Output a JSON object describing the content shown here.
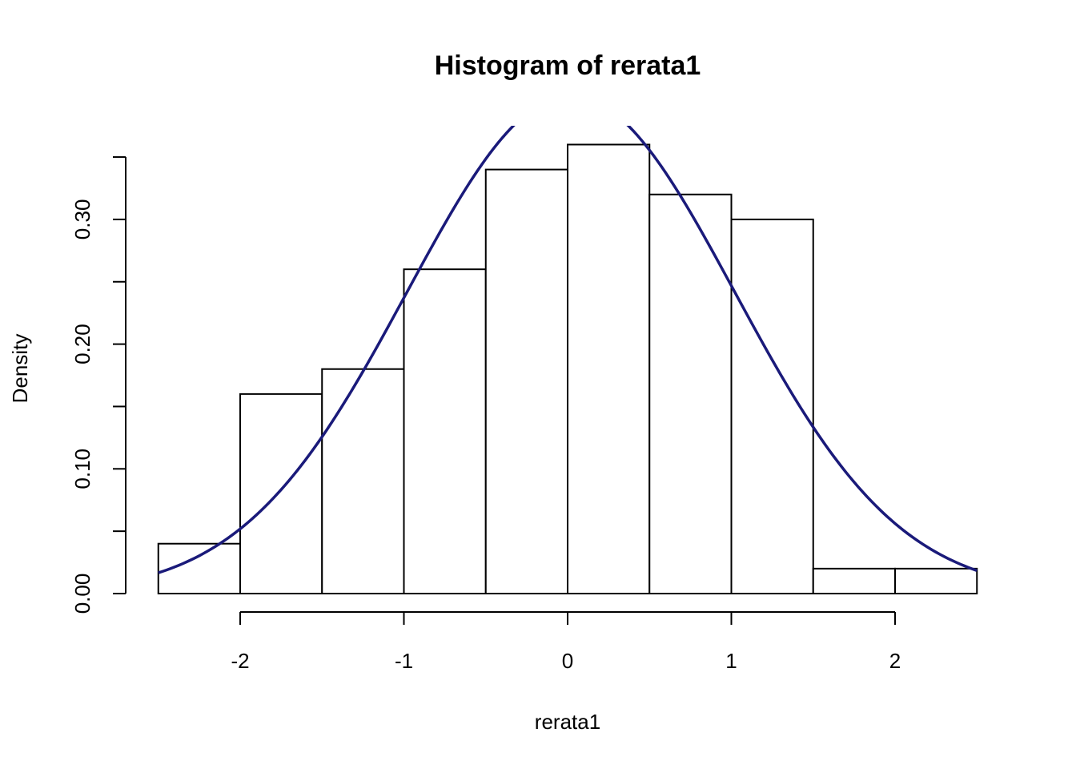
{
  "chart_data": {
    "type": "bar",
    "title": "Histogram of rerata1",
    "xlabel": "rerata1",
    "ylabel": "Density",
    "xlim": [
      -2.5,
      2.5
    ],
    "ylim": [
      0,
      0.35
    ],
    "x_ticks": [
      -2,
      -1,
      0,
      1,
      2
    ],
    "x_tick_labels": [
      "-2",
      "-1",
      "0",
      "1",
      "2"
    ],
    "y_ticks": [
      0.0,
      0.05,
      0.1,
      0.15,
      0.2,
      0.25,
      0.3,
      0.35
    ],
    "y_tick_labels": [
      "0.00",
      "",
      "0.10",
      "",
      "0.20",
      "",
      "0.30",
      ""
    ],
    "bins": [
      {
        "from": -2.5,
        "to": -2.0,
        "density": 0.04
      },
      {
        "from": -2.0,
        "to": -1.5,
        "density": 0.16
      },
      {
        "from": -1.5,
        "to": -1.0,
        "density": 0.18
      },
      {
        "from": -1.0,
        "to": -0.5,
        "density": 0.26
      },
      {
        "from": -0.5,
        "to": 0.0,
        "density": 0.34
      },
      {
        "from": 0.0,
        "to": 0.5,
        "density": 0.36
      },
      {
        "from": 0.5,
        "to": 1.0,
        "density": 0.32
      },
      {
        "from": 1.0,
        "to": 1.5,
        "density": 0.3
      },
      {
        "from": 1.5,
        "to": 2.0,
        "density": 0.02
      },
      {
        "from": 2.0,
        "to": 2.5,
        "density": 0.02
      }
    ],
    "normal_curve": {
      "mean": 0.02,
      "sd": 1.0
    },
    "grid": false,
    "legend": "none",
    "colors": {
      "bar_fill": "#ffffff",
      "bar_stroke": "#000000",
      "curve": "#1a1a7a"
    }
  }
}
